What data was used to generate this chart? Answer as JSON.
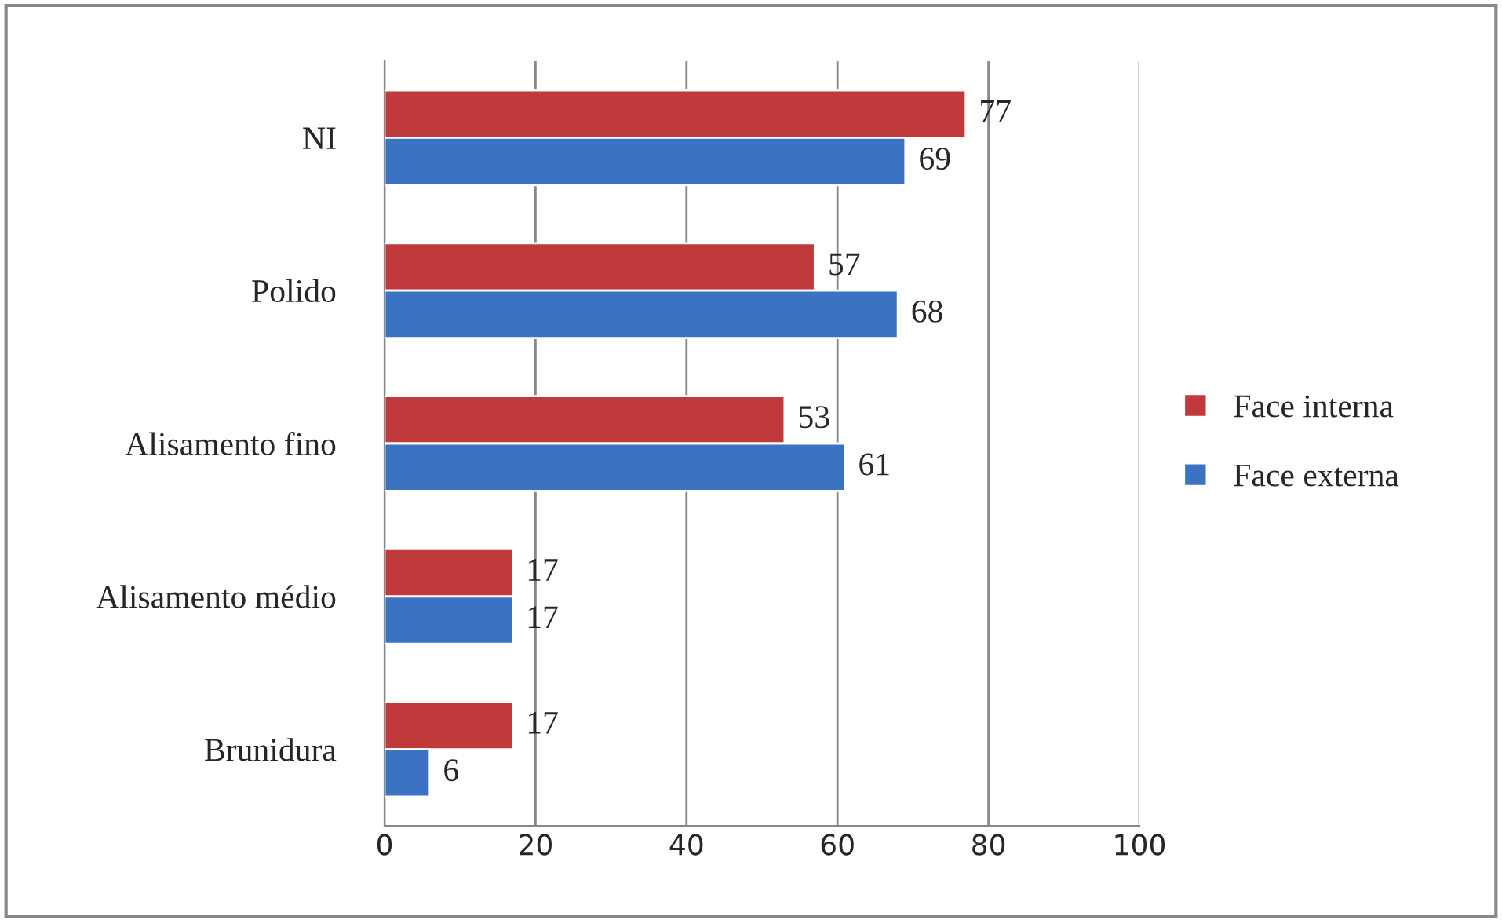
{
  "chart_data": {
    "type": "bar",
    "orientation": "horizontal",
    "categories": [
      "NI",
      "Polido",
      "Alisamento fino",
      "Alisamento médio",
      "Brunidura"
    ],
    "series": [
      {
        "name": "Face interna",
        "color": "#c0393b",
        "values": [
          77,
          57,
          53,
          17,
          17
        ]
      },
      {
        "name": "Face externa",
        "color": "#3b73c2",
        "values": [
          69,
          68,
          61,
          17,
          6
        ]
      }
    ],
    "xlim": [
      0,
      100
    ],
    "xticks": [
      0,
      20,
      40,
      60,
      80,
      100
    ],
    "grid": "x",
    "legend": "right",
    "data_labels": true
  }
}
